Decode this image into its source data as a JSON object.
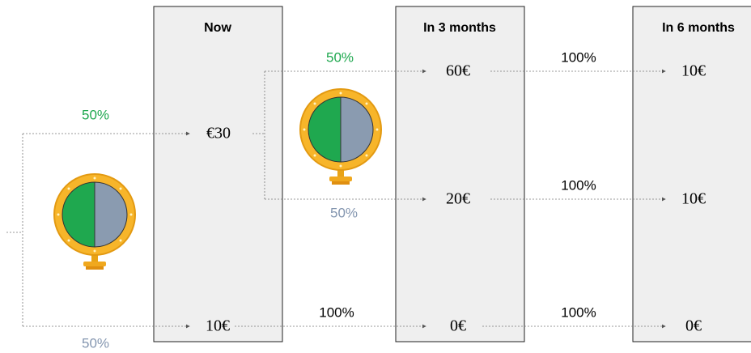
{
  "columns": [
    {
      "title": "Now",
      "values": [
        "€30",
        "10€"
      ]
    },
    {
      "title": "In 3 months",
      "values": [
        "60€",
        "20€",
        "0€"
      ]
    },
    {
      "title": "In 6 months",
      "values": [
        "10€",
        "10€",
        "0€"
      ]
    }
  ],
  "first_wheel": {
    "up": "50%",
    "down": "50%"
  },
  "second_wheel": {
    "up": "50%",
    "down": "50%"
  },
  "transitions": [
    "100%",
    "100%",
    "100%",
    "100%"
  ]
}
